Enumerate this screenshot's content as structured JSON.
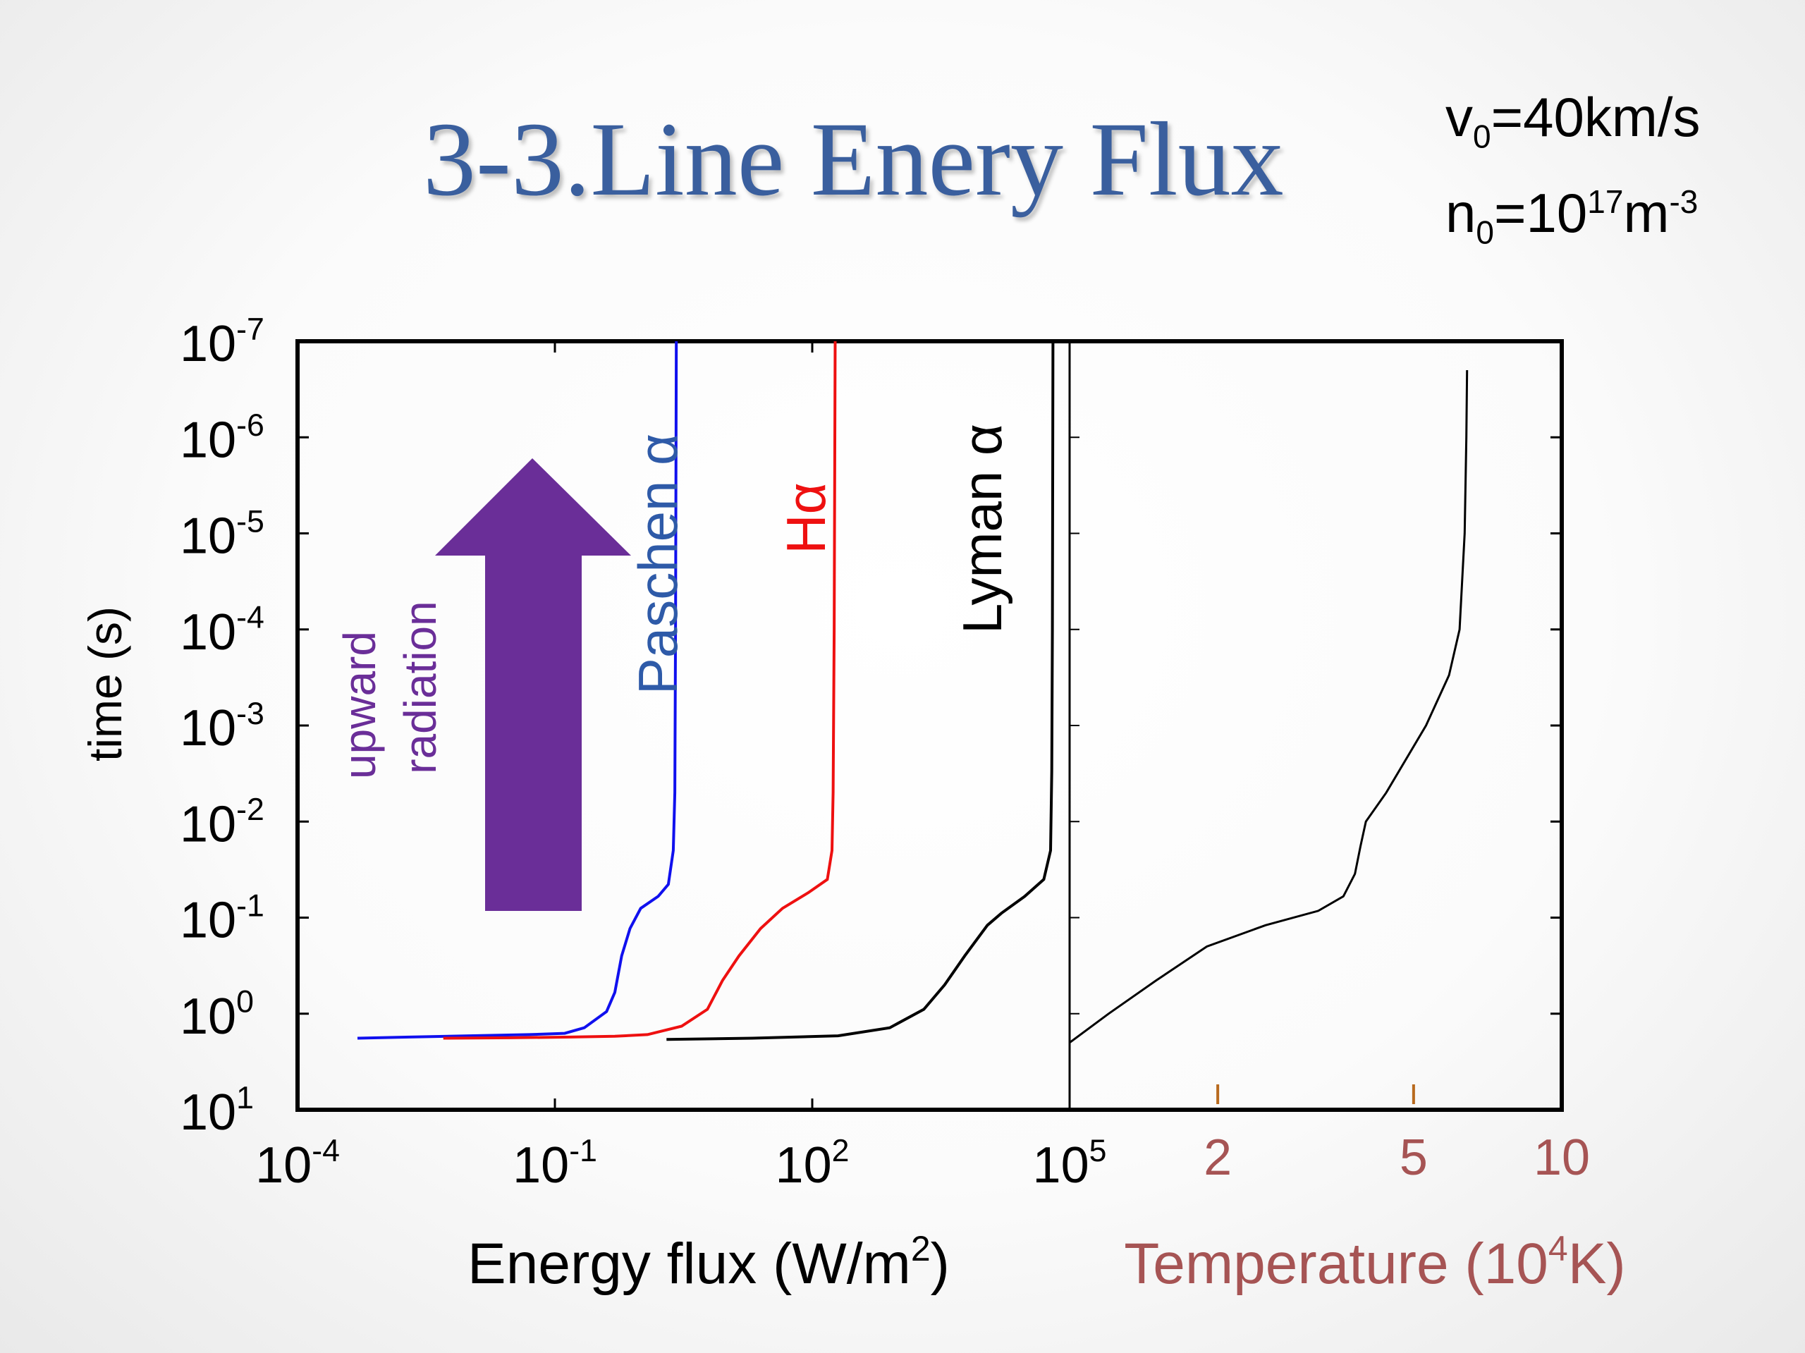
{
  "slide": {
    "title": "3-3.Line Enery Flux",
    "params": {
      "v0_sym": "v",
      "v0_sub": "0",
      "v0_val": "=40km/s",
      "n0_sym": "n",
      "n0_sub": "0",
      "n0_val": "=10",
      "n0_exp": "17",
      "n0_unit": "m",
      "n0_unit_exp": "-3"
    },
    "arrow_label": [
      "upward",
      "radiation"
    ],
    "arrow_color": "#6a2e98"
  },
  "chart_data": [
    {
      "type": "line",
      "xlabel": "Energy flux (W/m2)",
      "ylabel": "time (s)",
      "x_scale": "log",
      "y_scale": "log",
      "y_inverted": true,
      "xlim": [
        0.0001,
        100000
      ],
      "ylim": [
        10,
        1e-07
      ],
      "x_ticks": [
        {
          "base": "10",
          "exp": "-4",
          "value": 0.0001
        },
        {
          "base": "10",
          "exp": "-1",
          "value": 0.1
        },
        {
          "base": "10",
          "exp": "2",
          "value": 100
        },
        {
          "base": "10",
          "exp": "5",
          "value": 100000
        }
      ],
      "y_ticks": [
        {
          "base": "10",
          "exp": "-7",
          "value": 1e-07
        },
        {
          "base": "10",
          "exp": "-6",
          "value": 1e-06
        },
        {
          "base": "10",
          "exp": "-5",
          "value": 1e-05
        },
        {
          "base": "10",
          "exp": "-4",
          "value": 0.0001
        },
        {
          "base": "10",
          "exp": "-3",
          "value": 0.001
        },
        {
          "base": "10",
          "exp": "-2",
          "value": 0.01
        },
        {
          "base": "10",
          "exp": "-1",
          "value": 0.1
        },
        {
          "base": "10",
          "exp": "0",
          "value": 1
        },
        {
          "base": "10",
          "exp": "1",
          "value": 10
        }
      ],
      "series": [
        {
          "name": "Paschen α",
          "color": "#1010ee",
          "points": [
            [
              0.0005,
              1.8
            ],
            [
              0.002,
              1.75
            ],
            [
              0.01,
              1.7
            ],
            [
              0.05,
              1.65
            ],
            [
              0.13,
              1.6
            ],
            [
              0.22,
              1.4
            ],
            [
              0.4,
              0.95
            ],
            [
              0.5,
              0.6
            ],
            [
              0.6,
              0.25
            ],
            [
              0.75,
              0.13
            ],
            [
              1,
              0.08
            ],
            [
              1.6,
              0.06
            ],
            [
              2.1,
              0.045
            ],
            [
              2.4,
              0.02
            ],
            [
              2.5,
              0.005
            ],
            [
              2.55,
              0.0001
            ],
            [
              2.6,
              1e-07
            ]
          ]
        },
        {
          "name": "Hα",
          "color": "#ee1010",
          "points": [
            [
              0.005,
              1.8
            ],
            [
              0.03,
              1.78
            ],
            [
              0.15,
              1.75
            ],
            [
              0.5,
              1.72
            ],
            [
              1.2,
              1.65
            ],
            [
              3,
              1.35
            ],
            [
              6,
              0.9
            ],
            [
              9,
              0.45
            ],
            [
              14,
              0.25
            ],
            [
              25,
              0.13
            ],
            [
              45,
              0.08
            ],
            [
              90,
              0.055
            ],
            [
              150,
              0.04
            ],
            [
              170,
              0.02
            ],
            [
              175,
              0.005
            ],
            [
              180,
              0.0001
            ],
            [
              185,
              1e-07
            ]
          ]
        },
        {
          "name": "Lyman α",
          "color": "#000000",
          "points": [
            [
              2,
              1.85
            ],
            [
              20,
              1.8
            ],
            [
              200,
              1.7
            ],
            [
              800,
              1.4
            ],
            [
              2000,
              0.9
            ],
            [
              3500,
              0.5
            ],
            [
              6000,
              0.25
            ],
            [
              11000,
              0.12
            ],
            [
              16000,
              0.09
            ],
            [
              30000,
              0.06
            ],
            [
              50000,
              0.04
            ],
            [
              60000,
              0.02
            ],
            [
              62000,
              0.003
            ],
            [
              63000,
              0.0001
            ],
            [
              64000,
              1e-07
            ]
          ]
        }
      ]
    },
    {
      "type": "line",
      "xlabel": "Temperature (10^4K)",
      "ylabel": "time (s)",
      "x_scale": "log",
      "y_scale": "log",
      "y_inverted": true,
      "xlim": [
        1,
        10
      ],
      "ylim": [
        10,
        1e-07
      ],
      "x_ticks": [
        {
          "label": "2",
          "value": 2
        },
        {
          "label": "5",
          "value": 5
        },
        {
          "label": "10",
          "value": 10
        }
      ],
      "x_tick_color": "#b86a1e",
      "x_label_color": "#a65454",
      "series": [
        {
          "color": "#000000",
          "points": [
            [
              1.0,
              2.0
            ],
            [
              1.2,
              1.0
            ],
            [
              1.5,
              0.45
            ],
            [
              1.9,
              0.2
            ],
            [
              2.5,
              0.12
            ],
            [
              3.2,
              0.085
            ],
            [
              3.6,
              0.06
            ],
            [
              3.8,
              0.035
            ],
            [
              3.9,
              0.018
            ],
            [
              4.0,
              0.01
            ],
            [
              4.4,
              0.005
            ],
            [
              5.3,
              0.001
            ],
            [
              5.9,
              0.0003
            ],
            [
              6.2,
              0.0001
            ],
            [
              6.35,
              1e-05
            ],
            [
              6.4,
              1e-06
            ],
            [
              6.42,
              2e-07
            ]
          ]
        }
      ]
    }
  ]
}
